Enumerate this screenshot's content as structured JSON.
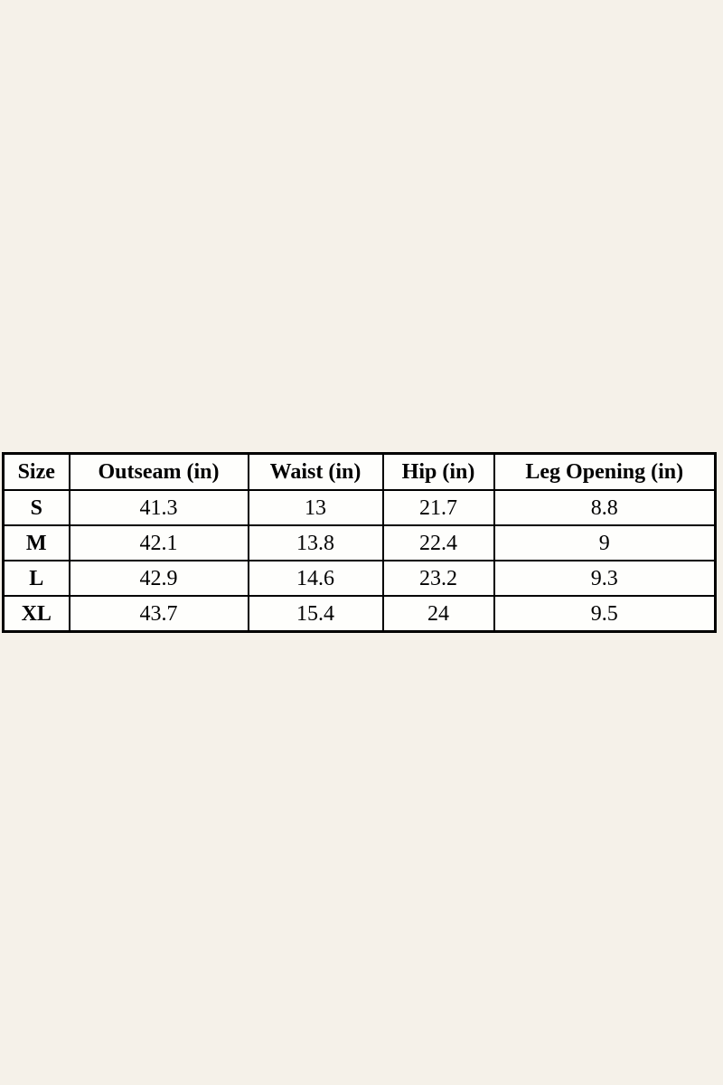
{
  "canvas": {
    "background_color": "#F5F1E9",
    "table_background": "#FEFEFC",
    "border_color": "#000000",
    "text_color": "#000000"
  },
  "chart_data": {
    "type": "table",
    "columns": [
      "Size",
      "Outseam (in)",
      "Waist (in)",
      "Hip (in)",
      "Leg Opening (in)"
    ],
    "rows": [
      [
        "S",
        "41.3",
        "13",
        "21.7",
        "8.8"
      ],
      [
        "M",
        "42.1",
        "13.8",
        "22.4",
        "9"
      ],
      [
        "L",
        "42.9",
        "14.6",
        "23.2",
        "9.3"
      ],
      [
        "XL",
        "43.7",
        "15.4",
        "24",
        "9.5"
      ]
    ],
    "layout": {
      "position": "vertically-centered full-width band",
      "grid": "on",
      "header_style": "bold serif",
      "row_label_style": "bold serif"
    }
  }
}
